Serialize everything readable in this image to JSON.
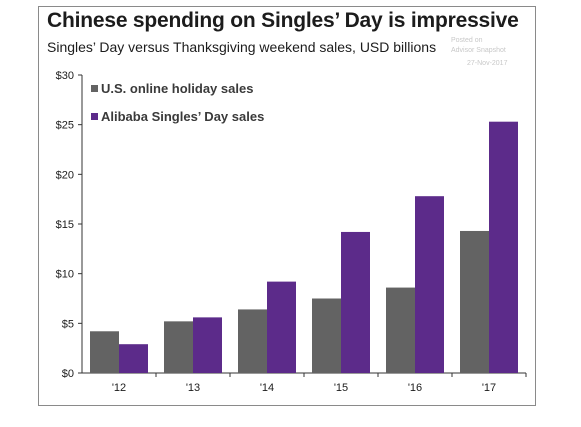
{
  "watermark": {
    "posted": "Posted on",
    "source": "Advisor Snapshot",
    "date": "27-Nov-2017"
  },
  "chart_data": {
    "type": "bar",
    "title": "Chinese spending on Singles’ Day is impressive",
    "subtitle": "Singles’ Day versus Thanksgiving weekend sales, USD billions",
    "xlabel": "",
    "ylabel": "",
    "categories": [
      "'12",
      "'13",
      "'14",
      "'15",
      "'16",
      "'17"
    ],
    "series": [
      {
        "name": "U.S. online holiday sales",
        "color": "#636363",
        "values": [
          4.2,
          5.2,
          6.4,
          7.5,
          8.6,
          14.3
        ]
      },
      {
        "name": "Alibaba Singles’ Day sales",
        "color": "#5c2b8a",
        "values": [
          2.9,
          5.6,
          9.2,
          14.2,
          17.8,
          25.3
        ]
      }
    ],
    "ylim": [
      0,
      30
    ],
    "yticks": [
      0,
      5,
      10,
      15,
      20,
      25,
      30
    ],
    "ytick_labels": [
      "$0",
      "$5",
      "$10",
      "$15",
      "$20",
      "$25",
      "$30"
    ],
    "grid": false,
    "legend_position": "top-left"
  }
}
